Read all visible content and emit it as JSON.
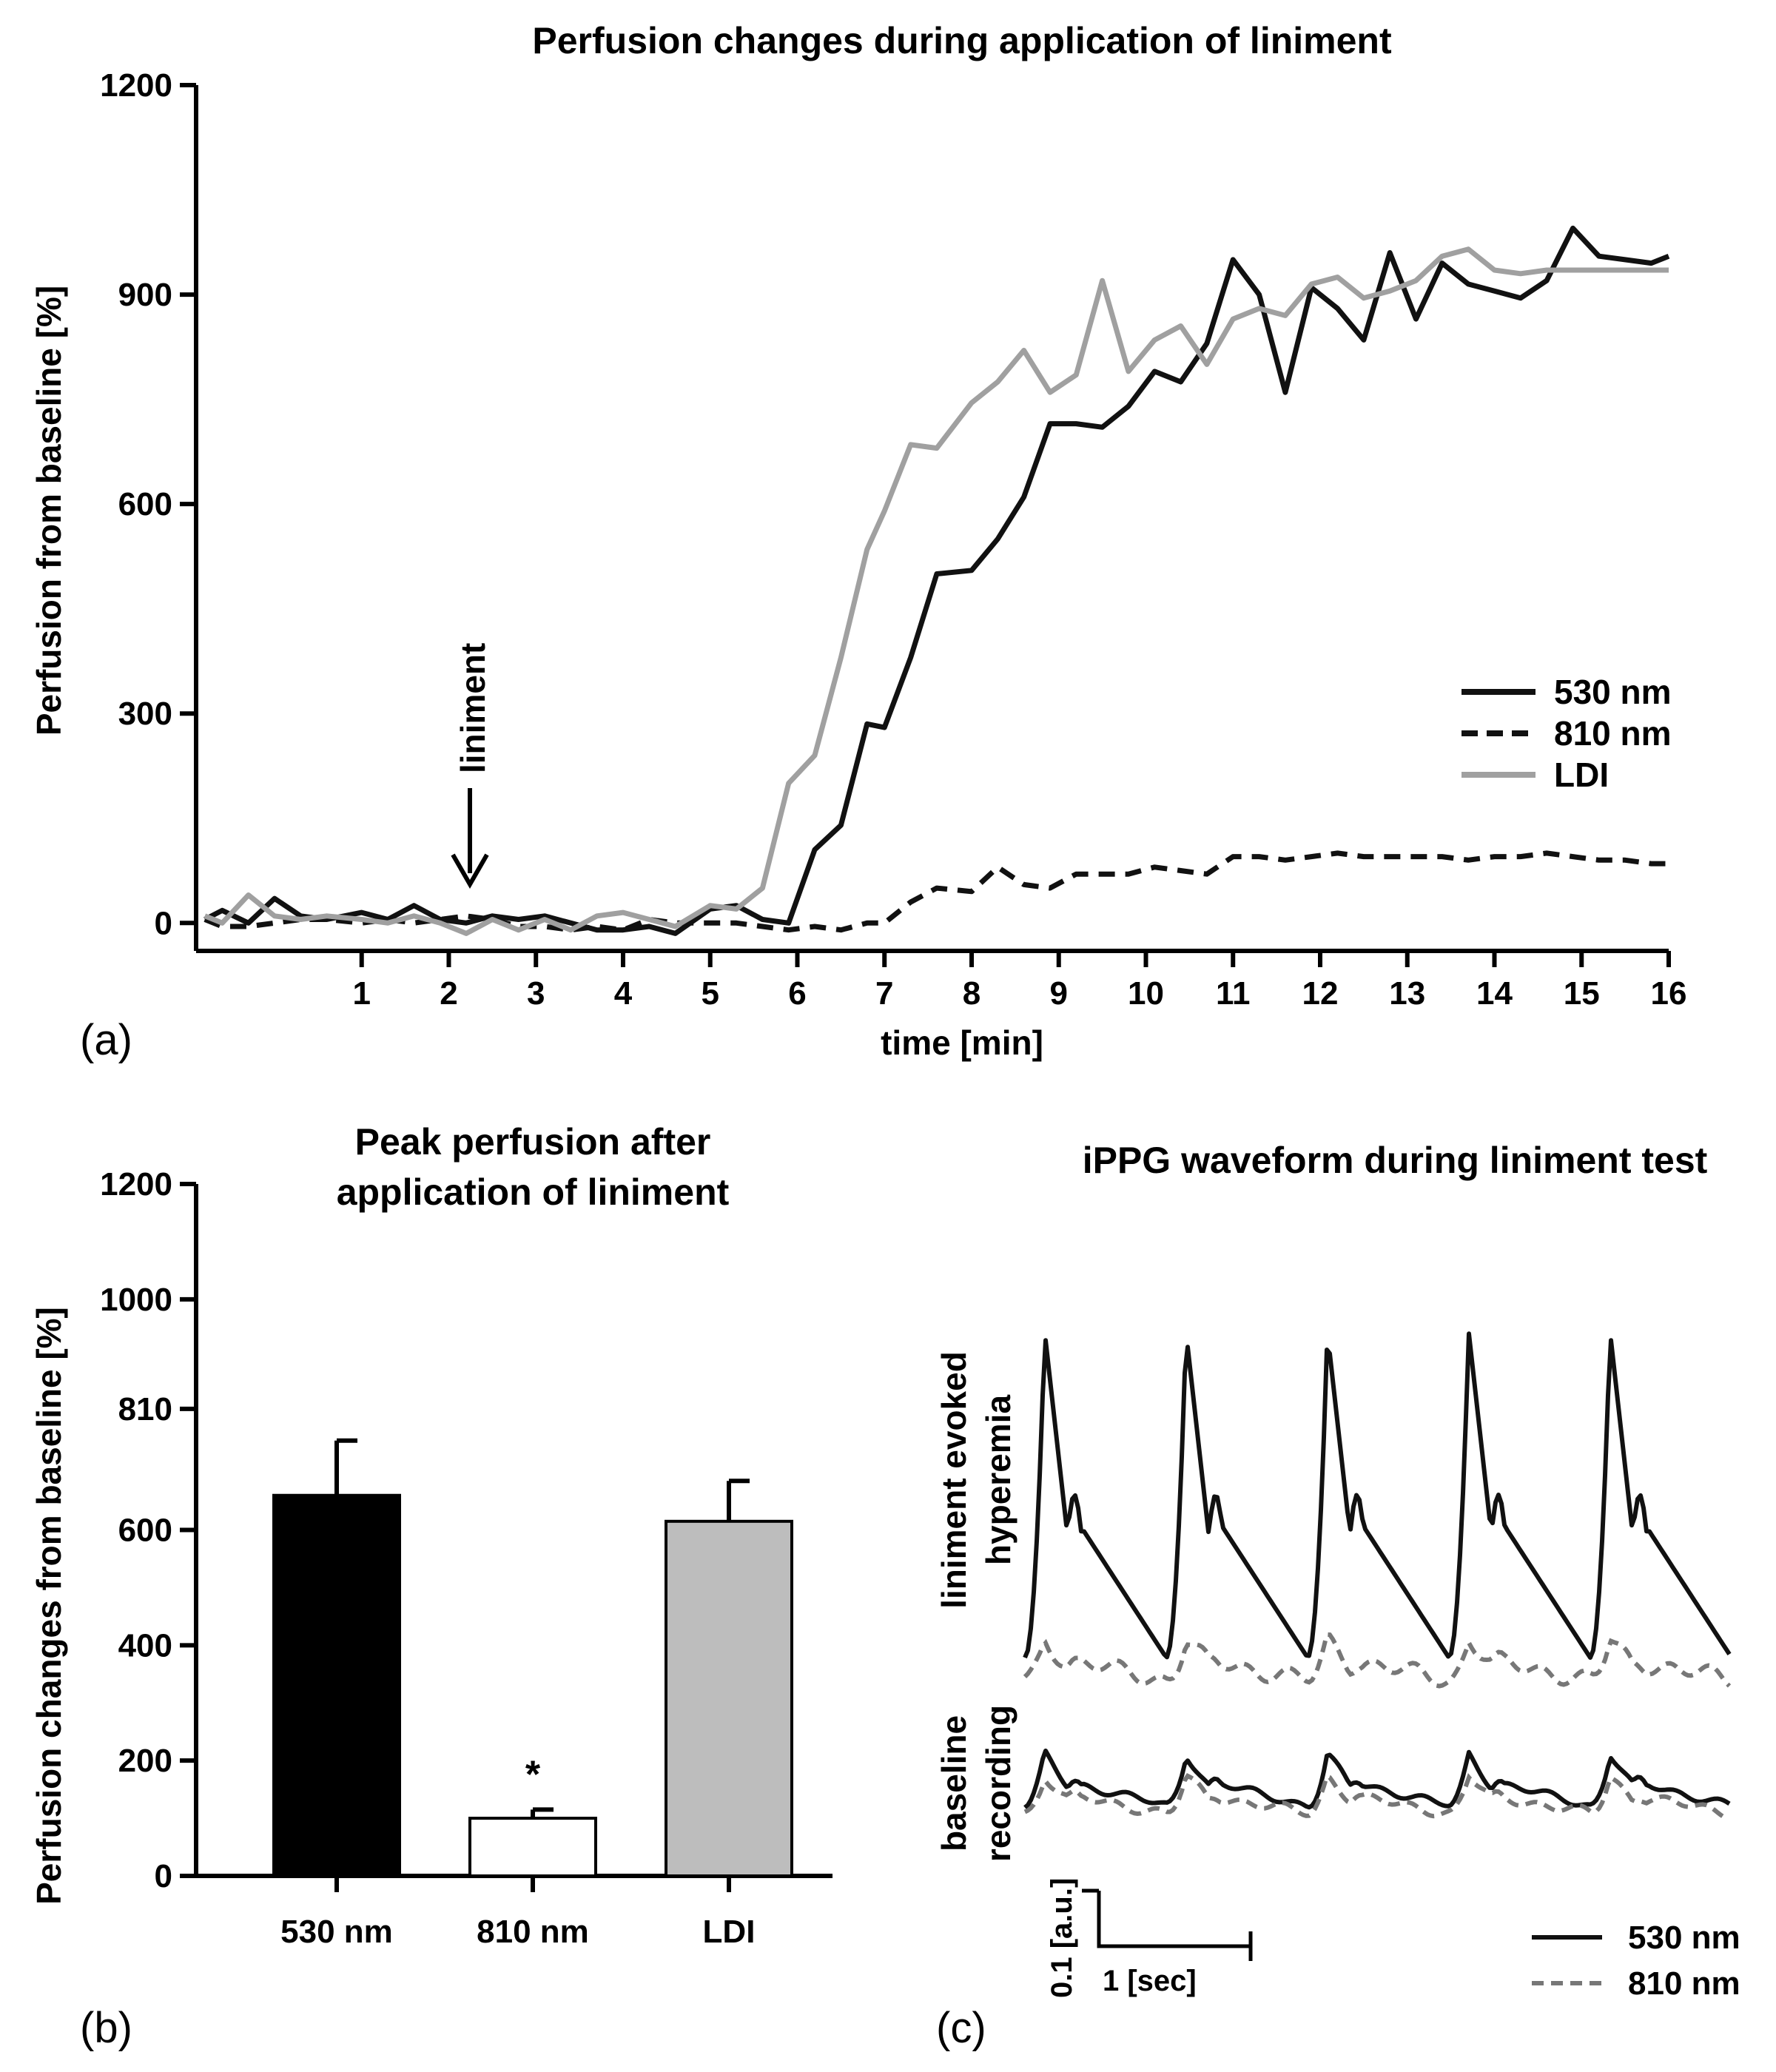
{
  "chart_data": [
    {
      "type": "line",
      "panel_label": "(a)",
      "title": "Perfusion changes during application of liniment",
      "xlabel": "time [min]",
      "ylabel": "Perfusion from baseline [%]",
      "xlim": [
        -0.9,
        16
      ],
      "ylim": [
        -40,
        1200
      ],
      "xticks": [
        "1",
        "2",
        "3",
        "4",
        "5",
        "6",
        "7",
        "8",
        "9",
        "10",
        "11",
        "12",
        "13",
        "14",
        "15",
        "16"
      ],
      "yticks": [
        "0",
        "300",
        "600",
        "900",
        "1200"
      ],
      "annotation": "liniment",
      "annotation_x": 3,
      "legend_position": "right",
      "series": [
        {
          "name": "530 nm",
          "color": "#111111",
          "dash": "solid",
          "x": [
            -0.8,
            -0.6,
            -0.3,
            0,
            0.3,
            0.6,
            1,
            1.3,
            1.6,
            1.9,
            2.2,
            2.5,
            2.8,
            3.1,
            3.4,
            3.7,
            4,
            4.3,
            4.6,
            5,
            5.3,
            5.6,
            5.9,
            6.2,
            6.5,
            6.8,
            7,
            7.3,
            7.6,
            8,
            8.3,
            8.6,
            8.9,
            9.2,
            9.5,
            9.8,
            10.1,
            10.4,
            10.7,
            11,
            11.3,
            11.6,
            11.9,
            12.2,
            12.5,
            12.8,
            13.1,
            13.4,
            13.7,
            14,
            14.3,
            14.6,
            14.9,
            15.2,
            15.5,
            15.8,
            16
          ],
          "y": [
            5,
            18,
            0,
            35,
            10,
            5,
            15,
            5,
            25,
            5,
            0,
            10,
            5,
            10,
            0,
            -10,
            -10,
            -5,
            -15,
            20,
            25,
            5,
            0,
            105,
            140,
            285,
            280,
            380,
            500,
            505,
            550,
            610,
            715,
            715,
            710,
            740,
            790,
            775,
            830,
            950,
            900,
            760,
            910,
            880,
            835,
            960,
            865,
            945,
            915,
            905,
            895,
            920,
            995,
            955,
            950,
            945,
            955
          ]
        },
        {
          "name": "810 nm",
          "color": "#111111",
          "dash": "dashed",
          "x": [
            -0.8,
            -0.6,
            -0.3,
            0,
            0.3,
            0.6,
            1,
            1.3,
            1.6,
            1.9,
            2.2,
            2.5,
            2.8,
            3.1,
            3.4,
            3.7,
            4,
            4.3,
            4.6,
            5,
            5.3,
            5.6,
            5.9,
            6.2,
            6.5,
            6.8,
            7,
            7.3,
            7.6,
            8,
            8.3,
            8.6,
            8.9,
            9.2,
            9.5,
            9.8,
            10.1,
            10.4,
            10.7,
            11,
            11.3,
            11.6,
            11.9,
            12.2,
            12.5,
            12.8,
            13.1,
            13.4,
            13.7,
            14,
            14.3,
            14.6,
            14.9,
            15.2,
            15.5,
            15.8,
            16
          ],
          "y": [
            5,
            -5,
            -5,
            0,
            5,
            5,
            0,
            5,
            0,
            5,
            10,
            5,
            -5,
            -5,
            -10,
            -5,
            -10,
            5,
            0,
            0,
            0,
            -5,
            -10,
            -5,
            -10,
            0,
            0,
            30,
            50,
            45,
            80,
            55,
            50,
            70,
            70,
            70,
            80,
            75,
            70,
            95,
            95,
            90,
            95,
            100,
            95,
            95,
            95,
            95,
            90,
            95,
            95,
            100,
            95,
            90,
            90,
            85,
            85
          ]
        },
        {
          "name": "LDI",
          "color": "#a0a0a0",
          "dash": "solid",
          "x": [
            -0.8,
            -0.6,
            -0.3,
            0,
            0.3,
            0.6,
            1,
            1.3,
            1.6,
            1.9,
            2.2,
            2.5,
            2.8,
            3.1,
            3.4,
            3.7,
            4,
            4.3,
            4.6,
            5,
            5.3,
            5.6,
            5.9,
            6.2,
            6.5,
            6.8,
            7,
            7.3,
            7.6,
            8,
            8.3,
            8.6,
            8.9,
            9.2,
            9.5,
            9.8,
            10.1,
            10.4,
            10.7,
            11,
            11.3,
            11.6,
            11.9,
            12.2,
            12.5,
            12.8,
            13.1,
            13.4,
            13.7,
            14,
            14.3,
            14.6,
            14.9,
            15.2,
            15.5,
            15.8,
            16
          ],
          "y": [
            10,
            0,
            40,
            10,
            5,
            10,
            5,
            0,
            10,
            0,
            -15,
            5,
            -10,
            5,
            -10,
            10,
            15,
            5,
            -5,
            25,
            20,
            50,
            200,
            240,
            380,
            535,
            590,
            685,
            680,
            745,
            775,
            820,
            760,
            785,
            920,
            790,
            835,
            855,
            800,
            865,
            880,
            870,
            915,
            925,
            895,
            905,
            920,
            955,
            965,
            935,
            930,
            935,
            935,
            935,
            935,
            935,
            935
          ]
        }
      ]
    },
    {
      "type": "bar",
      "panel_label": "(b)",
      "title": [
        "Peak perfusion after",
        "application of liniment"
      ],
      "ylabel": "Perfusion changes from baseline [%]",
      "ylim": [
        0,
        1200
      ],
      "yticks": [
        "0",
        "200",
        "400",
        "600",
        "810",
        "1000",
        "1200"
      ],
      "categories": [
        "530 nm",
        "810 nm",
        "LDI"
      ],
      "values": [
        660,
        100,
        615
      ],
      "errors": [
        95,
        15,
        70
      ],
      "colors": [
        "#000000",
        "#ffffff",
        "#bdbdbd"
      ],
      "significance": [
        "",
        "*",
        ""
      ]
    },
    {
      "type": "line",
      "panel_label": "(c)",
      "title": "iPPG waveform during liniment test",
      "row_labels": [
        [
          "liniment evoked",
          "hyperemia"
        ],
        [
          "baseline",
          "recording"
        ]
      ],
      "scale_bar": {
        "y_label": "0.1 [a.u.]",
        "x_label": "1 [sec]"
      },
      "legend": [
        {
          "name": "530 nm",
          "color": "#111111",
          "dash": "solid"
        },
        {
          "name": "810 nm",
          "color": "#777777",
          "dash": "dashed"
        }
      ],
      "peaks_per_trace": 5
    }
  ]
}
